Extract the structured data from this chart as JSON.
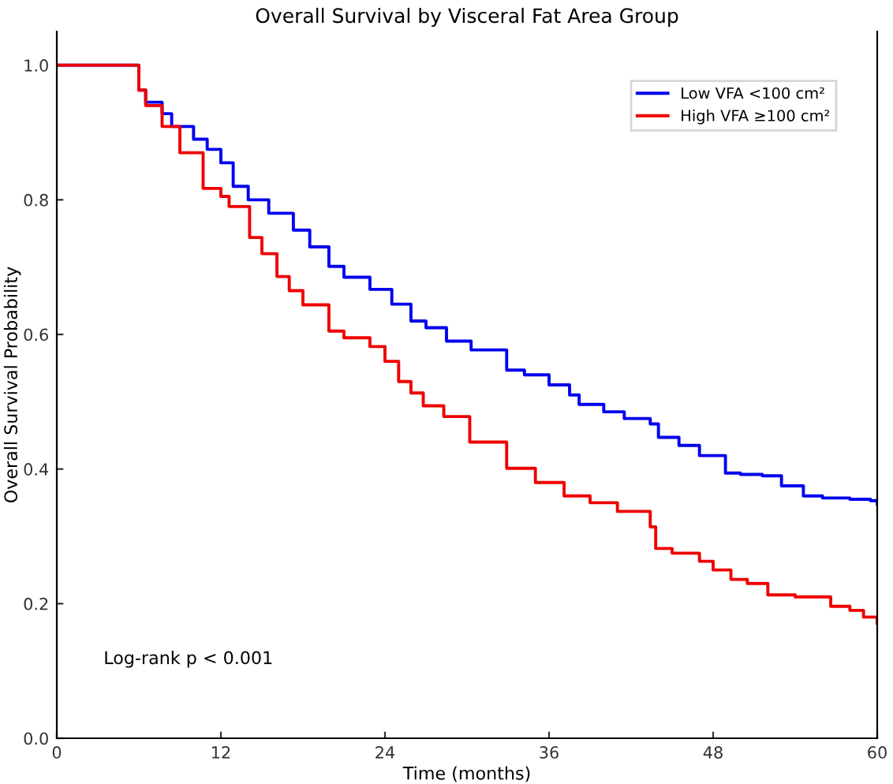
{
  "chart_data": {
    "type": "step",
    "title": "Overall Survival by Visceral Fat Area Group",
    "xlabel": "Time (months)",
    "ylabel": "Overall Survival Probability",
    "annotations": [
      "Log-rank p < 0.001"
    ],
    "series": [
      {
        "name": "Low VFA <100 cm²",
        "color": "#0000ee",
        "x": [
          0,
          6,
          6.5,
          7.7,
          8.4,
          10,
          11,
          12,
          12.9,
          14,
          15.5,
          17.3,
          18.5,
          19.9,
          21,
          22.9,
          24.5,
          25.9,
          27,
          28.5,
          30.3,
          32.9,
          34.2,
          36,
          37.5,
          38.2,
          40,
          41.5,
          43.4,
          44,
          45.5,
          47,
          48.9,
          50,
          51.6,
          53,
          54.6,
          56,
          58,
          59.5,
          60
        ],
        "values": [
          1.0,
          0.963,
          0.945,
          0.928,
          0.909,
          0.89,
          0.875,
          0.855,
          0.82,
          0.8,
          0.78,
          0.755,
          0.73,
          0.701,
          0.685,
          0.667,
          0.645,
          0.62,
          0.61,
          0.59,
          0.577,
          0.547,
          0.54,
          0.525,
          0.51,
          0.496,
          0.485,
          0.475,
          0.467,
          0.447,
          0.435,
          0.42,
          0.394,
          0.392,
          0.39,
          0.375,
          0.36,
          0.357,
          0.355,
          0.353,
          0.348
        ]
      },
      {
        "name": "High VFA ≥100 cm²",
        "color": "#ee0000",
        "x": [
          0,
          6,
          6.5,
          7.7,
          9,
          10.7,
          12,
          12.6,
          14.1,
          15,
          16.1,
          17,
          18,
          19.9,
          21,
          22.9,
          24,
          25,
          25.9,
          26.8,
          28.3,
          30.2,
          32.9,
          35,
          37.1,
          39,
          41,
          43.4,
          43.8,
          45,
          47,
          48,
          49.3,
          50.5,
          52,
          54,
          56.6,
          58,
          59,
          60
        ],
        "values": [
          1.0,
          0.963,
          0.94,
          0.909,
          0.87,
          0.817,
          0.805,
          0.79,
          0.744,
          0.72,
          0.686,
          0.665,
          0.644,
          0.605,
          0.595,
          0.582,
          0.56,
          0.53,
          0.513,
          0.494,
          0.478,
          0.44,
          0.401,
          0.38,
          0.36,
          0.35,
          0.337,
          0.314,
          0.282,
          0.275,
          0.263,
          0.25,
          0.236,
          0.23,
          0.213,
          0.21,
          0.196,
          0.19,
          0.18,
          0.171
        ]
      }
    ],
    "xlim": [
      0,
      60
    ],
    "xticks": [
      0,
      12,
      24,
      36,
      48,
      60
    ],
    "ylim": [
      0,
      1.05
    ],
    "yticks": [
      {
        "value": 0,
        "label": "0.0"
      },
      0.2,
      0.4,
      0.6,
      0.8,
      {
        "value": 1,
        "label": "1.0"
      }
    ],
    "grid": false,
    "legend": "top right"
  }
}
